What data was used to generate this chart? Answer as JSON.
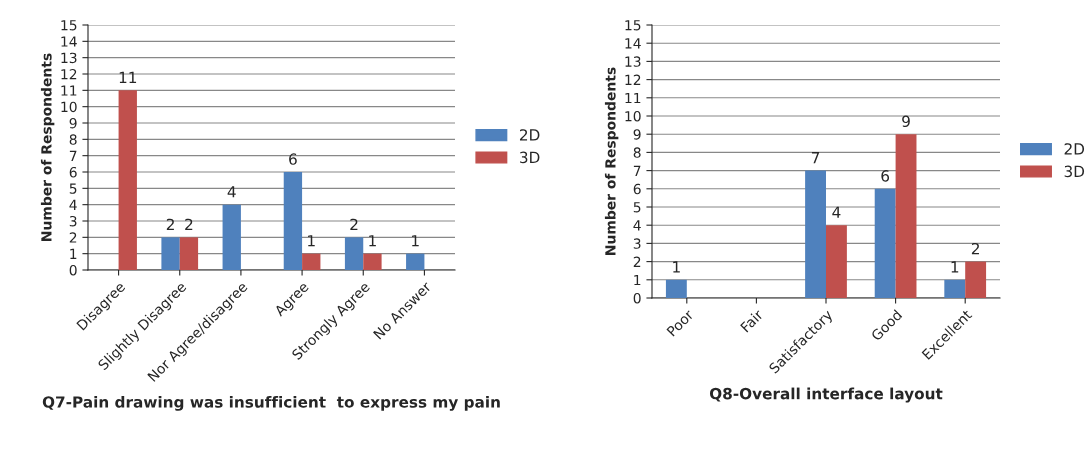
{
  "chart_data": [
    {
      "type": "bar",
      "xlabel": "Q7-Pain drawing was insufficient  to express my pain",
      "ylabel": "Number of Respondents",
      "categories": [
        "Disagree",
        "Slightly Disagree",
        "Nor Agree/disagree",
        "Agree",
        "Strongly Agree",
        "No Answer"
      ],
      "series": [
        {
          "name": "2D",
          "color": "#4f81bd",
          "values": [
            null,
            2,
            4,
            6,
            2,
            1
          ],
          "value_labels": [
            null,
            "2",
            "4",
            "6",
            "2",
            "1"
          ]
        },
        {
          "name": "3D",
          "color": "#c0504d",
          "values": [
            11,
            2,
            null,
            1,
            1,
            null
          ],
          "value_labels": [
            "11",
            "2",
            null,
            "1",
            "1",
            null
          ]
        }
      ],
      "ylim": [
        0,
        15
      ],
      "yticks": [
        0,
        1,
        2,
        3,
        4,
        5,
        6,
        7,
        8,
        9,
        10,
        11,
        12,
        13,
        14,
        15
      ],
      "grid": "y",
      "legend": "right"
    },
    {
      "type": "bar",
      "xlabel": "Q8-Overall interface layout",
      "ylabel": "Number of Respondents",
      "categories": [
        "Poor",
        "Fair",
        "Satisfactory",
        "Good",
        "Excellent"
      ],
      "series": [
        {
          "name": "2D",
          "color": "#4f81bd",
          "values": [
            1,
            null,
            7,
            6,
            1
          ],
          "value_labels": [
            "1",
            null,
            "7",
            "6",
            "1"
          ]
        },
        {
          "name": "3D",
          "color": "#c0504d",
          "values": [
            null,
            null,
            4,
            9,
            2
          ],
          "value_labels": [
            null,
            null,
            "4",
            "9",
            "2"
          ]
        }
      ],
      "ylim": [
        0,
        15
      ],
      "yticks": [
        0,
        1,
        2,
        3,
        4,
        5,
        6,
        7,
        8,
        9,
        10,
        11,
        12,
        13,
        14,
        15
      ],
      "grid": "y",
      "legend": "right"
    }
  ]
}
